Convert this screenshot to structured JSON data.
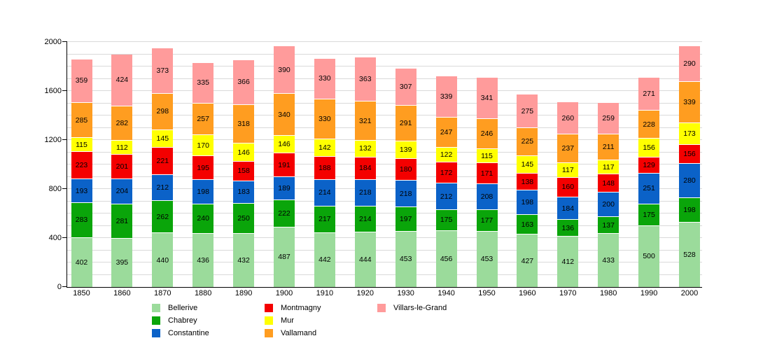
{
  "chart_data": {
    "type": "bar",
    "stacked": true,
    "title": "",
    "xlabel": "",
    "ylabel": "",
    "ylim": [
      0,
      2000
    ],
    "yticks": [
      0,
      400,
      800,
      1200,
      1600,
      2000
    ],
    "minor_grid_step": 100,
    "grid": "horizontal light-gray gridlines every 100",
    "legend_position": "below chart, 3 columns",
    "categories": [
      "1850",
      "1860",
      "1870",
      "1880",
      "1890",
      "1900",
      "1910",
      "1920",
      "1930",
      "1940",
      "1950",
      "1960",
      "1970",
      "1980",
      "1990",
      "2000"
    ],
    "series": [
      {
        "name": "Bellerive",
        "color": "#9bdb9b",
        "values": [
          402,
          395,
          440,
          436,
          432,
          487,
          442,
          444,
          453,
          456,
          453,
          427,
          412,
          433,
          500,
          528
        ]
      },
      {
        "name": "Chabrey",
        "color": "#0aa50a",
        "values": [
          283,
          281,
          262,
          240,
          250,
          222,
          217,
          214,
          197,
          175,
          177,
          163,
          136,
          137,
          175,
          198
        ]
      },
      {
        "name": "Constantine",
        "color": "#0b62c8",
        "values": [
          193,
          204,
          212,
          198,
          183,
          189,
          214,
          218,
          218,
          212,
          208,
          198,
          184,
          200,
          251,
          280
        ]
      },
      {
        "name": "Montmagny",
        "color": "#f40000",
        "values": [
          223,
          201,
          221,
          195,
          158,
          191,
          188,
          184,
          180,
          172,
          171,
          138,
          160,
          148,
          129,
          156
        ]
      },
      {
        "name": "Mur",
        "color": "#ffff00",
        "values": [
          115,
          112,
          145,
          170,
          146,
          146,
          142,
          132,
          139,
          122,
          115,
          145,
          117,
          117,
          156,
          173
        ]
      },
      {
        "name": "Vallamand",
        "color": "#ff9d20",
        "values": [
          285,
          282,
          298,
          257,
          318,
          340,
          330,
          321,
          291,
          247,
          246,
          225,
          237,
          211,
          228,
          339
        ]
      },
      {
        "name": "Villars-le-Grand",
        "color": "#ff9b9b",
        "values": [
          359,
          424,
          373,
          335,
          366,
          390,
          330,
          363,
          307,
          339,
          341,
          275,
          260,
          259,
          271,
          290
        ]
      }
    ]
  },
  "colors": {
    "background": "#ffffff",
    "axis": "#000000",
    "gridline": "#d9d9d9",
    "segment_separator": "#ffffff",
    "text": "#000000"
  }
}
